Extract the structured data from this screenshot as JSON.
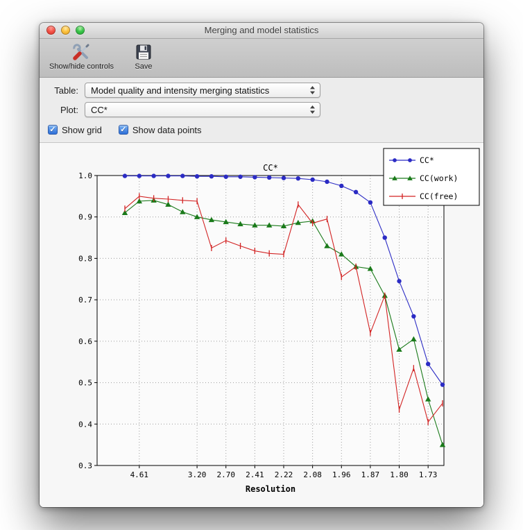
{
  "window": {
    "title": "Merging and model statistics"
  },
  "toolbar": {
    "items": [
      {
        "label": "Show/hide controls",
        "icon": "tools-icon"
      },
      {
        "label": "Save",
        "icon": "save-icon"
      }
    ]
  },
  "controls": {
    "table_label": "Table:",
    "table_value": "Model quality and intensity merging statistics",
    "plot_label": "Plot:",
    "plot_value": "CC*",
    "checkboxes": [
      {
        "label": "Show grid",
        "checked": true
      },
      {
        "label": "Show data points",
        "checked": true
      }
    ]
  },
  "chart_data": {
    "type": "line",
    "title": "CC*",
    "xlabel": "Resolution",
    "ylabel": "",
    "ylim": [
      0.3,
      1.0
    ],
    "yticks": [
      0.3,
      0.4,
      0.5,
      0.6,
      0.7,
      0.8,
      0.9,
      1.0
    ],
    "x_tick_labels": [
      "4.61",
      "3.20",
      "2.70",
      "2.41",
      "2.22",
      "2.08",
      "1.96",
      "1.87",
      "1.80",
      "1.73"
    ],
    "x_tick_indices": [
      1,
      5,
      7,
      9,
      11,
      13,
      15,
      17,
      19,
      21
    ],
    "n_points": 23,
    "grid": true,
    "show_data_points": true,
    "legend_position": "upper right",
    "series": [
      {
        "name": "CC*",
        "color": "#2b2bc4",
        "marker": "circle",
        "values": [
          0.999,
          0.999,
          0.999,
          0.999,
          0.999,
          0.998,
          0.998,
          0.997,
          0.997,
          0.996,
          0.995,
          0.994,
          0.993,
          0.99,
          0.985,
          0.975,
          0.96,
          0.935,
          0.85,
          0.745,
          0.66,
          0.545,
          0.495
        ]
      },
      {
        "name": "CC(work)",
        "color": "#1a7a1a",
        "marker": "triangle",
        "values": [
          0.91,
          0.938,
          0.94,
          0.93,
          0.912,
          0.9,
          0.893,
          0.888,
          0.883,
          0.88,
          0.88,
          0.878,
          0.886,
          0.89,
          0.83,
          0.81,
          0.78,
          0.775,
          0.71,
          0.58,
          0.605,
          0.46,
          0.35
        ]
      },
      {
        "name": "CC(free)",
        "color": "#d22222",
        "marker": "vline",
        "values": [
          0.92,
          0.95,
          0.945,
          0.943,
          0.94,
          0.938,
          0.825,
          0.843,
          0.83,
          0.818,
          0.812,
          0.81,
          0.93,
          0.885,
          0.895,
          0.755,
          0.78,
          0.62,
          0.71,
          0.435,
          0.535,
          0.405,
          0.45
        ]
      }
    ]
  }
}
